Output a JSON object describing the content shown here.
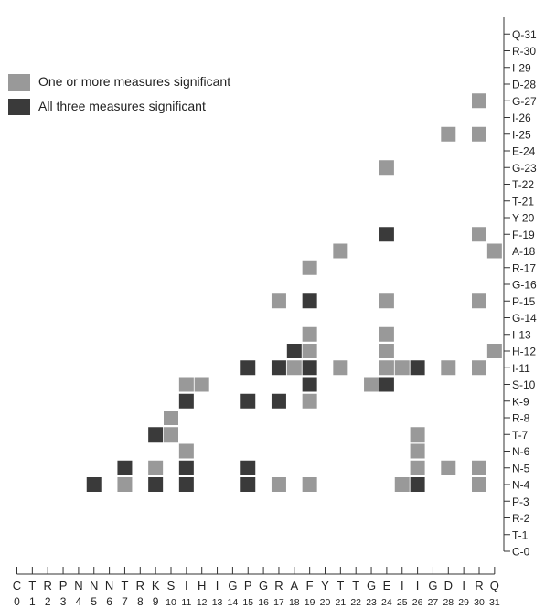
{
  "chart_data": {
    "type": "heatmap",
    "legend": [
      {
        "label": "One or more measures significant",
        "color": "#999999"
      },
      {
        "label": "All three measures significant",
        "color": "#3a3a3a"
      }
    ],
    "x_axis": {
      "position": "bottom",
      "letters": [
        "C",
        "T",
        "R",
        "P",
        "N",
        "N",
        "N",
        "T",
        "R",
        "K",
        "S",
        "I",
        "H",
        "I",
        "G",
        "P",
        "G",
        "R",
        "A",
        "F",
        "Y",
        "T",
        "T",
        "G",
        "E",
        "I",
        "I",
        "G",
        "D",
        "I",
        "R",
        "Q"
      ],
      "numbers": [
        "0",
        "1",
        "2",
        "3",
        "4",
        "5",
        "6",
        "7",
        "8",
        "9",
        "10",
        "11",
        "12",
        "13",
        "14",
        "15",
        "16",
        "17",
        "18",
        "19",
        "20",
        "21",
        "22",
        "23",
        "24",
        "25",
        "26",
        "27",
        "28",
        "29",
        "30",
        "31"
      ]
    },
    "y_axis": {
      "position": "right",
      "labels": [
        "C-0",
        "T-1",
        "R-2",
        "P-3",
        "N-4",
        "N-5",
        "N-6",
        "T-7",
        "R-8",
        "K-9",
        "S-10",
        "I-11",
        "H-12",
        "I-13",
        "G-14",
        "P-15",
        "G-16",
        "R-17",
        "A-18",
        "F-19",
        "Y-20",
        "T-21",
        "T-22",
        "G-23",
        "E-24",
        "I-25",
        "I-26",
        "G-27",
        "D-28",
        "I-29",
        "R-30",
        "Q-31"
      ]
    },
    "cells": [
      {
        "x": 30,
        "y": 27,
        "level": 1
      },
      {
        "x": 28,
        "y": 25,
        "level": 1
      },
      {
        "x": 30,
        "y": 25,
        "level": 1
      },
      {
        "x": 24,
        "y": 23,
        "level": 1
      },
      {
        "x": 24,
        "y": 19,
        "level": 2
      },
      {
        "x": 30,
        "y": 19,
        "level": 1
      },
      {
        "x": 21,
        "y": 18,
        "level": 1
      },
      {
        "x": 31,
        "y": 18,
        "level": 1
      },
      {
        "x": 19,
        "y": 17,
        "level": 1
      },
      {
        "x": 17,
        "y": 15,
        "level": 1
      },
      {
        "x": 19,
        "y": 15,
        "level": 2
      },
      {
        "x": 24,
        "y": 15,
        "level": 1
      },
      {
        "x": 30,
        "y": 15,
        "level": 1
      },
      {
        "x": 19,
        "y": 13,
        "level": 1
      },
      {
        "x": 24,
        "y": 13,
        "level": 1
      },
      {
        "x": 18,
        "y": 12,
        "level": 2
      },
      {
        "x": 19,
        "y": 12,
        "level": 1
      },
      {
        "x": 24,
        "y": 12,
        "level": 1
      },
      {
        "x": 31,
        "y": 12,
        "level": 1
      },
      {
        "x": 15,
        "y": 11,
        "level": 2
      },
      {
        "x": 17,
        "y": 11,
        "level": 2
      },
      {
        "x": 18,
        "y": 11,
        "level": 1
      },
      {
        "x": 19,
        "y": 11,
        "level": 2
      },
      {
        "x": 21,
        "y": 11,
        "level": 1
      },
      {
        "x": 24,
        "y": 11,
        "level": 1
      },
      {
        "x": 25,
        "y": 11,
        "level": 1
      },
      {
        "x": 26,
        "y": 11,
        "level": 2
      },
      {
        "x": 28,
        "y": 11,
        "level": 1
      },
      {
        "x": 30,
        "y": 11,
        "level": 1
      },
      {
        "x": 11,
        "y": 10,
        "level": 1
      },
      {
        "x": 12,
        "y": 10,
        "level": 1
      },
      {
        "x": 19,
        "y": 10,
        "level": 2
      },
      {
        "x": 23,
        "y": 10,
        "level": 1
      },
      {
        "x": 24,
        "y": 10,
        "level": 2
      },
      {
        "x": 11,
        "y": 9,
        "level": 2
      },
      {
        "x": 15,
        "y": 9,
        "level": 2
      },
      {
        "x": 17,
        "y": 9,
        "level": 2
      },
      {
        "x": 19,
        "y": 9,
        "level": 1
      },
      {
        "x": 10,
        "y": 8,
        "level": 1
      },
      {
        "x": 9,
        "y": 7,
        "level": 2
      },
      {
        "x": 10,
        "y": 7,
        "level": 1
      },
      {
        "x": 26,
        "y": 7,
        "level": 1
      },
      {
        "x": 11,
        "y": 6,
        "level": 1
      },
      {
        "x": 26,
        "y": 6,
        "level": 1
      },
      {
        "x": 7,
        "y": 5,
        "level": 2
      },
      {
        "x": 9,
        "y": 5,
        "level": 1
      },
      {
        "x": 11,
        "y": 5,
        "level": 2
      },
      {
        "x": 15,
        "y": 5,
        "level": 2
      },
      {
        "x": 26,
        "y": 5,
        "level": 1
      },
      {
        "x": 28,
        "y": 5,
        "level": 1
      },
      {
        "x": 30,
        "y": 5,
        "level": 1
      },
      {
        "x": 5,
        "y": 4,
        "level": 2
      },
      {
        "x": 7,
        "y": 4,
        "level": 1
      },
      {
        "x": 9,
        "y": 4,
        "level": 2
      },
      {
        "x": 11,
        "y": 4,
        "level": 2
      },
      {
        "x": 15,
        "y": 4,
        "level": 2
      },
      {
        "x": 17,
        "y": 4,
        "level": 1
      },
      {
        "x": 19,
        "y": 4,
        "level": 1
      },
      {
        "x": 25,
        "y": 4,
        "level": 1
      },
      {
        "x": 26,
        "y": 4,
        "level": 2
      },
      {
        "x": 30,
        "y": 4,
        "level": 1
      }
    ]
  }
}
